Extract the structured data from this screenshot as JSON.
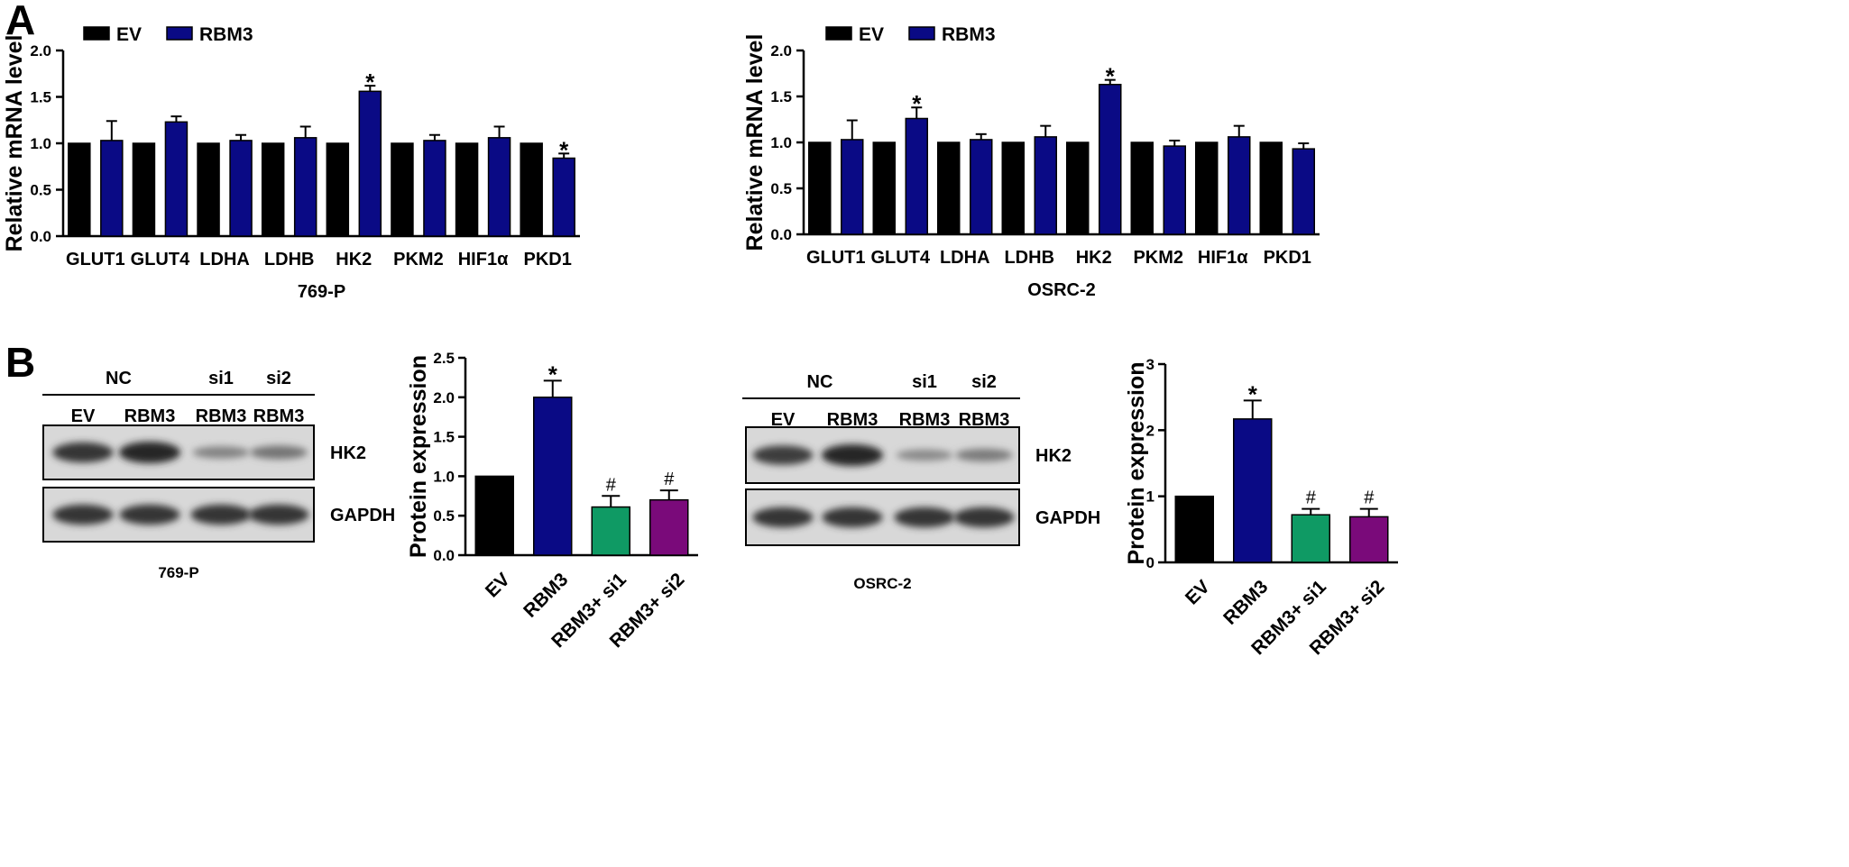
{
  "panel_labels": [
    "A",
    "B"
  ],
  "colors": {
    "ev": "#000000",
    "rbm3": "#0a0a85",
    "si1": "#0f9a64",
    "si2": "#7a0a7a",
    "blot_bg": "#d6d6d6",
    "band": "#1e1e1e"
  },
  "chart_data": [
    {
      "type": "bar",
      "id": "mrna-769p",
      "title": "769-P",
      "ylabel": "Relative mRNA level",
      "ylim": [
        0,
        2.0
      ],
      "yticks": [
        "0.0",
        "0.5",
        "1.0",
        "1.5",
        "2.0"
      ],
      "categories": [
        "GLUT1",
        "GLUT4",
        "LDHA",
        "LDHB",
        "HK2",
        "PKM2",
        "HIF1α",
        "PKD1"
      ],
      "legend": "top-left",
      "series": [
        {
          "name": "EV",
          "color": "#000000",
          "values": [
            1.0,
            1.0,
            1.0,
            1.0,
            1.0,
            1.0,
            1.0,
            1.0
          ],
          "errors": [
            0,
            0,
            0,
            0,
            0,
            0,
            0,
            0
          ]
        },
        {
          "name": "RBM3",
          "color": "#0a0a85",
          "values": [
            1.03,
            1.23,
            1.03,
            1.06,
            1.56,
            1.03,
            1.06,
            0.84
          ],
          "errors": [
            0.21,
            0.06,
            0.06,
            0.12,
            0.06,
            0.06,
            0.12,
            0.05
          ]
        }
      ],
      "annotations": [
        "",
        "",
        "",
        "",
        "*",
        "",
        "",
        "*"
      ]
    },
    {
      "type": "bar",
      "id": "mrna-osrc2",
      "title": "OSRC-2",
      "ylabel": "Relative mRNA level",
      "ylim": [
        0,
        2.0
      ],
      "yticks": [
        "0.0",
        "0.5",
        "1.0",
        "1.5",
        "2.0"
      ],
      "categories": [
        "GLUT1",
        "GLUT4",
        "LDHA",
        "LDHB",
        "HK2",
        "PKM2",
        "HIF1α",
        "PKD1"
      ],
      "legend": "top-left",
      "series": [
        {
          "name": "EV",
          "color": "#000000",
          "values": [
            1.0,
            1.0,
            1.0,
            1.0,
            1.0,
            1.0,
            1.0,
            1.0
          ],
          "errors": [
            0,
            0,
            0,
            0,
            0,
            0,
            0,
            0
          ]
        },
        {
          "name": "RBM3",
          "color": "#0a0a85",
          "values": [
            1.03,
            1.26,
            1.03,
            1.06,
            1.63,
            0.96,
            1.06,
            0.93
          ],
          "errors": [
            0.21,
            0.12,
            0.06,
            0.12,
            0.05,
            0.06,
            0.12,
            0.06
          ]
        }
      ],
      "annotations": [
        "",
        "*",
        "",
        "",
        "*",
        "",
        "",
        ""
      ]
    },
    {
      "type": "bar",
      "id": "protein-769p",
      "ylabel": "Protein expression",
      "ylim": [
        0,
        2.5
      ],
      "yticks": [
        "0.0",
        "0.5",
        "1.0",
        "1.5",
        "2.0",
        "2.5"
      ],
      "categories": [
        "EV",
        "RBM3",
        "RBM3+ si1",
        "RBM3+ si2"
      ],
      "values": [
        1.0,
        2.0,
        0.61,
        0.7
      ],
      "errors": [
        0,
        0.21,
        0.14,
        0.12
      ],
      "colors": [
        "#000000",
        "#0a0a85",
        "#0f9a64",
        "#7a0a7a"
      ],
      "annotations": [
        "",
        "*",
        "#",
        "#"
      ]
    },
    {
      "type": "bar",
      "id": "protein-osrc2",
      "ylabel": "Protein expression",
      "ylim": [
        0,
        3
      ],
      "yticks": [
        "0",
        "1",
        "2",
        "3"
      ],
      "categories": [
        "EV",
        "RBM3",
        "RBM3+ si1",
        "RBM3+ si2"
      ],
      "values": [
        1.0,
        2.17,
        0.72,
        0.69
      ],
      "errors": [
        0,
        0.28,
        0.09,
        0.12
      ],
      "colors": [
        "#000000",
        "#0a0a85",
        "#0f9a64",
        "#7a0a7a"
      ],
      "annotations": [
        "",
        "*",
        "#",
        "#"
      ]
    }
  ],
  "blots": [
    {
      "id": "blot-769p",
      "group_labels": [
        "NC",
        "si1",
        "si2"
      ],
      "lane_labels": [
        "EV",
        "RBM3",
        "RBM3",
        "RBM3"
      ],
      "proteins": [
        "HK2",
        "GAPDH"
      ],
      "cell_line": "769-P",
      "hk2_intensity": [
        0.9,
        1.0,
        0.35,
        0.45
      ],
      "gapdh_intensity": [
        0.9,
        0.9,
        0.9,
        0.9
      ]
    },
    {
      "id": "blot-osrc2",
      "group_labels": [
        "NC",
        "si1",
        "si2"
      ],
      "lane_labels": [
        "EV",
        "RBM3",
        "RBM3",
        "RBM3"
      ],
      "proteins": [
        "HK2",
        "GAPDH"
      ],
      "cell_line": "OSRC-2",
      "hk2_intensity": [
        0.85,
        1.0,
        0.3,
        0.4
      ],
      "gapdh_intensity": [
        0.9,
        0.9,
        0.9,
        0.9
      ]
    }
  ]
}
